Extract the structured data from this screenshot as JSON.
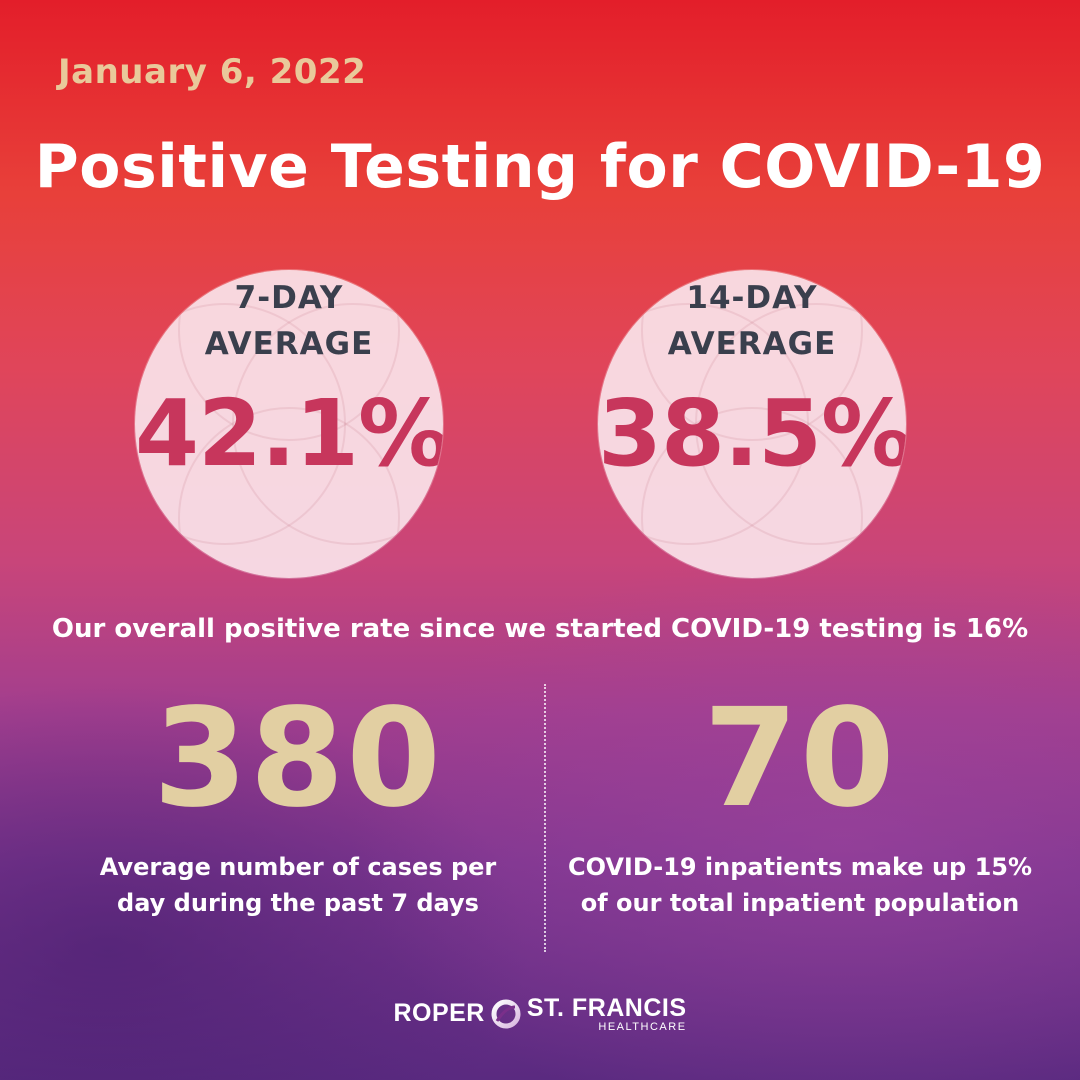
{
  "header": {
    "date": "January 6, 2022",
    "title": "Positive Testing for COVID-19"
  },
  "averages": [
    {
      "label_line1": "7-DAY",
      "label_line2": "AVERAGE",
      "value": "42.1%"
    },
    {
      "label_line1": "14-DAY",
      "label_line2": "AVERAGE",
      "value": "38.5%"
    }
  ],
  "overall_text": "Our overall positive rate since we started COVID-19 testing is 16%",
  "stats": [
    {
      "number": "380",
      "description": "Average number of cases per day during the past 7 days"
    },
    {
      "number": "70",
      "description": "COVID-19 inpatients make up 15% of our total inpatient population"
    }
  ],
  "logo": {
    "left_word": "ROPER",
    "right_word": "ST. FRANCIS",
    "sub_word": "HEALTHCARE",
    "icon": "ribbon-logo-icon"
  },
  "colors": {
    "date_gold": "#e9c99a",
    "stat_gold": "#e2cfa2",
    "percent_red": "#c7365c",
    "label_gray": "#3a3f4d",
    "bg_top": "#e31e2a",
    "bg_bottom": "#5a2a80"
  }
}
